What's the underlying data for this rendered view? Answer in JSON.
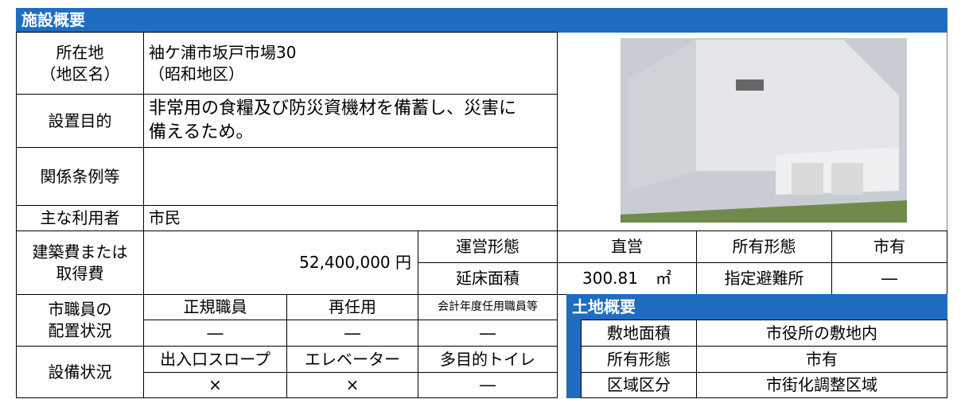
{
  "header": {
    "title": "施設概要"
  },
  "location": {
    "label": "所在地",
    "sublabel": "（地区名）",
    "value": "袖ケ浦市坂戸市場30",
    "subvalue": "（昭和地区）"
  },
  "purpose": {
    "label": "設置目的",
    "value": "非常用の食糧及び防災資機材を備蓄し、災害に備えるため。"
  },
  "ordinance": {
    "label": "関係条例等"
  },
  "users": {
    "label": "主な利用者",
    "value": "市民"
  },
  "cost": {
    "label": [
      "建築費または",
      "取得費"
    ],
    "value": "52,400,000 円"
  },
  "operation": {
    "label": "運営形態",
    "value": "直営"
  },
  "ownership": {
    "label": "所有形態",
    "value": "市有"
  },
  "floor_area": {
    "label": "延床面積",
    "value": "300.81",
    "unit": "㎡"
  },
  "shelter": {
    "label": "指定避難所",
    "value": "―"
  },
  "staff": {
    "label": [
      "市職員の",
      "配置状況"
    ],
    "columns": [
      "正規職員",
      "再任用",
      "会計年度任用職員等"
    ],
    "values": [
      "―",
      "―",
      "―"
    ]
  },
  "equipment": {
    "label": "設備状況",
    "columns": [
      "出入口スロープ",
      "エレベーター",
      "多目的トイレ"
    ],
    "values": [
      "×",
      "×",
      "―"
    ]
  },
  "land": {
    "title": "土地概要",
    "rows": [
      [
        "敷地面積",
        "市役所の敷地内"
      ],
      [
        "所有形態",
        "市有"
      ],
      [
        "区域区分",
        "市街化調整区域"
      ]
    ]
  }
}
